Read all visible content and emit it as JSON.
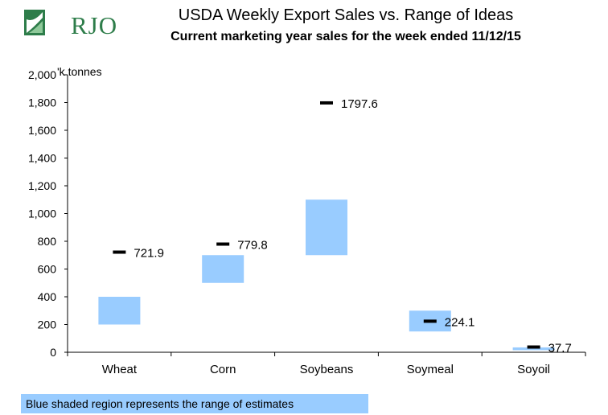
{
  "logo": {
    "text": "RJO"
  },
  "chart_data": {
    "type": "bar",
    "title": "USDA Weekly Export Sales vs. Range of Ideas",
    "subtitle": "Current marketing year sales for the week ended 11/12/15",
    "ylabel": "'k tonnes",
    "ylim": [
      0,
      2000
    ],
    "yticks": [
      0,
      200,
      400,
      600,
      800,
      1000,
      1200,
      1400,
      1600,
      1800,
      2000
    ],
    "ytick_labels": [
      "0",
      "200",
      "400",
      "600",
      "800",
      "1,000",
      "1,200",
      "1,400",
      "1,600",
      "1,800",
      "2,000"
    ],
    "categories": [
      "Wheat",
      "Corn",
      "Soybeans",
      "Soymeal",
      "Soyoil"
    ],
    "range_low": [
      200,
      500,
      700,
      150,
      15
    ],
    "range_high": [
      400,
      700,
      1100,
      300,
      35
    ],
    "actual": [
      721.9,
      779.8,
      1797.6,
      224.1,
      37.7
    ],
    "actual_labels": [
      "721.9",
      "779.8",
      "1797.6",
      "224.1",
      "37.7"
    ],
    "range_color": "#99ccff",
    "marker_color": "#000000",
    "grid": false
  },
  "footnote": "Blue shaded region represents the range of estimates"
}
